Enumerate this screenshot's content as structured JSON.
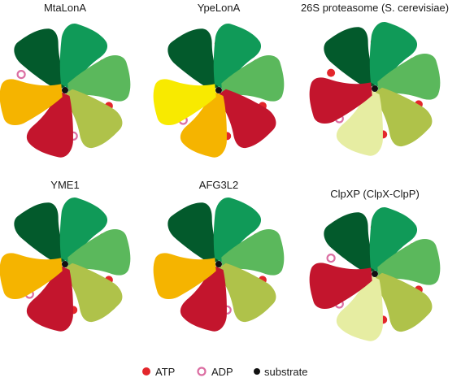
{
  "colors": {
    "s1": "#035a2c",
    "s2": "#109a58",
    "s3": "#5bb85c",
    "s4": "#afc24a",
    "s5": "#c3152d",
    "s6": "#f5b400",
    "yellow": "#f8ea00",
    "pale": "#e6eda2",
    "atp": "#e3262b",
    "adp": "#db6ea2",
    "substrate": "#111111"
  },
  "panels": [
    {
      "title": "MtaLonA",
      "subunits": [
        {
          "color": "s1",
          "nucleotide": "none"
        },
        {
          "color": "s2",
          "nucleotide": "atp"
        },
        {
          "color": "s3",
          "nucleotide": "atp"
        },
        {
          "color": "s4",
          "nucleotide": "adp"
        },
        {
          "color": "s5",
          "nucleotide": "none"
        },
        {
          "color": "s6",
          "nucleotide": "adp"
        }
      ]
    },
    {
      "title": "YpeLonA",
      "subunits": [
        {
          "color": "s1",
          "nucleotide": "atp"
        },
        {
          "color": "s2",
          "nucleotide": "atp"
        },
        {
          "color": "s3",
          "nucleotide": "atp"
        },
        {
          "color": "s5",
          "nucleotide": "atp"
        },
        {
          "color": "s6",
          "nucleotide": "adp"
        },
        {
          "color": "yellow",
          "nucleotide": "none"
        }
      ]
    },
    {
      "title": "26S proteasome (S. cerevisiae)",
      "subunits": [
        {
          "color": "s1",
          "nucleotide": "atp"
        },
        {
          "color": "s2",
          "nucleotide": "atp"
        },
        {
          "color": "s3",
          "nucleotide": "atp"
        },
        {
          "color": "s4",
          "nucleotide": "atp"
        },
        {
          "color": "pale",
          "nucleotide": "adp"
        },
        {
          "color": "s5",
          "nucleotide": "atp"
        }
      ]
    },
    {
      "title": "YME1",
      "subunits": [
        {
          "color": "s1",
          "nucleotide": "none"
        },
        {
          "color": "s2",
          "nucleotide": "atp"
        },
        {
          "color": "s3",
          "nucleotide": "atp"
        },
        {
          "color": "s4",
          "nucleotide": "atp"
        },
        {
          "color": "s5",
          "nucleotide": "adp"
        },
        {
          "color": "s6",
          "nucleotide": "none"
        }
      ]
    },
    {
      "title": "AFG3L2",
      "subunits": [
        {
          "color": "s1",
          "nucleotide": "none"
        },
        {
          "color": "s2",
          "nucleotide": "atp"
        },
        {
          "color": "s3",
          "nucleotide": "atp"
        },
        {
          "color": "s4",
          "nucleotide": "adp"
        },
        {
          "color": "s5",
          "nucleotide": "none"
        },
        {
          "color": "s6",
          "nucleotide": "none"
        }
      ]
    },
    {
      "title": "ClpXP (ClpX-ClpP)",
      "subunits": [
        {
          "color": "s1",
          "nucleotide": "atp"
        },
        {
          "color": "s2",
          "nucleotide": "atp"
        },
        {
          "color": "s3",
          "nucleotide": "atp"
        },
        {
          "color": "s4",
          "nucleotide": "atp"
        },
        {
          "color": "pale",
          "nucleotide": "adp"
        },
        {
          "color": "s5",
          "nucleotide": "adp"
        }
      ]
    }
  ],
  "legend": {
    "atp_label": "ATP",
    "adp_label": "ADP",
    "substrate_label": "substrate"
  }
}
